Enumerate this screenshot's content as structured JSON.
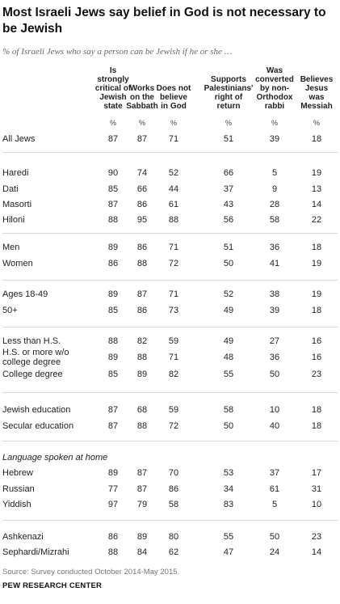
{
  "title": "Most Israeli Jews say belief in God is not necessary to be Jewish",
  "subtitle": "% of Israeli Jews who say a person can be Jewish if he or she …",
  "source": "Source: Survey conducted October 2014-May 2015.",
  "organization": "PEW RESEARCH CENTER",
  "chart_data": {
    "type": "table",
    "columns": [
      [
        "Is",
        "strongly",
        "critical of",
        "Jewish",
        "state"
      ],
      [
        "Works",
        "on the",
        "Sabbath"
      ],
      [
        "Does not",
        "believe",
        "in God"
      ],
      [
        "Supports",
        "Palestinians'",
        "right of",
        "return"
      ],
      [
        "Was",
        "converted",
        "by non-",
        "Orthodox",
        "rabbi"
      ],
      [
        "Believes",
        "Jesus",
        "was",
        "Messiah"
      ]
    ],
    "unit_label": "%",
    "rows": [
      {
        "label": [
          "All Jews"
        ],
        "values": [
          87,
          87,
          71,
          51,
          39,
          18
        ]
      },
      {
        "label": [
          "Haredi"
        ],
        "values": [
          90,
          74,
          52,
          66,
          5,
          19
        ]
      },
      {
        "label": [
          "Dati"
        ],
        "values": [
          85,
          66,
          44,
          37,
          9,
          13
        ]
      },
      {
        "label": [
          "Masorti"
        ],
        "values": [
          87,
          86,
          61,
          43,
          28,
          14
        ]
      },
      {
        "label": [
          "Hiloni"
        ],
        "values": [
          88,
          95,
          88,
          56,
          58,
          22
        ]
      },
      {
        "label": [
          "Men"
        ],
        "values": [
          89,
          86,
          71,
          51,
          36,
          18
        ]
      },
      {
        "label": [
          "Women"
        ],
        "values": [
          86,
          88,
          72,
          50,
          41,
          19
        ]
      },
      {
        "label": [
          "Ages 18-49"
        ],
        "values": [
          89,
          87,
          71,
          52,
          38,
          19
        ]
      },
      {
        "label": [
          "50+"
        ],
        "values": [
          85,
          86,
          73,
          49,
          39,
          18
        ]
      },
      {
        "label": [
          "Less than H.S."
        ],
        "values": [
          88,
          82,
          59,
          49,
          27,
          16
        ]
      },
      {
        "label": [
          "H.S. or more w/o",
          "college degree"
        ],
        "values": [
          89,
          88,
          71,
          48,
          36,
          16
        ]
      },
      {
        "label": [
          "College degree"
        ],
        "values": [
          85,
          89,
          82,
          55,
          50,
          23
        ]
      },
      {
        "label": [
          "Jewish education"
        ],
        "values": [
          87,
          68,
          59,
          58,
          10,
          18
        ]
      },
      {
        "label": [
          "Secular education"
        ],
        "values": [
          87,
          88,
          72,
          50,
          40,
          18
        ]
      },
      {
        "section": "Language spoken at home"
      },
      {
        "label": [
          "Hebrew"
        ],
        "values": [
          89,
          87,
          70,
          53,
          37,
          17
        ]
      },
      {
        "label": [
          "Russian"
        ],
        "values": [
          77,
          87,
          86,
          34,
          61,
          31
        ]
      },
      {
        "label": [
          "Yiddish"
        ],
        "values": [
          97,
          79,
          58,
          83,
          5,
          10
        ]
      },
      {
        "label": [
          "Ashkenazi"
        ],
        "values": [
          86,
          89,
          80,
          55,
          50,
          23
        ]
      },
      {
        "label": [
          "Sephardi/Mizrahi"
        ],
        "values": [
          88,
          84,
          62,
          47,
          24,
          14
        ]
      }
    ]
  }
}
